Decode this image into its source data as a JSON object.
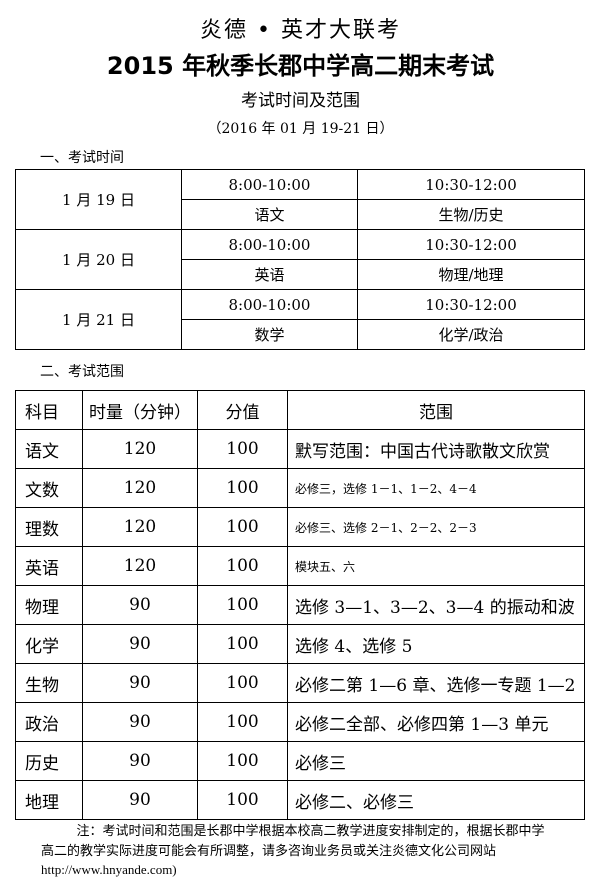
{
  "header": {
    "brand": "炎德 • 英才大联考",
    "title": "2015 年秋季长郡中学高二期末考试",
    "subtitle": "考试时间及范围",
    "date": "（2016 年 01 月 19-21 日）"
  },
  "schedule": {
    "heading": "一、考试时间",
    "days": [
      {
        "date": "1 月 19 日",
        "slot1_time": "8:00-10:00",
        "slot1_subject": "语文",
        "slot2_time": "10:30-12:00",
        "slot2_subject": "生物/历史"
      },
      {
        "date": "1 月 20 日",
        "slot1_time": "8:00-10:00",
        "slot1_subject": "英语",
        "slot2_time": "10:30-12:00",
        "slot2_subject": "物理/地理"
      },
      {
        "date": "1 月 21 日",
        "slot1_time": "8:00-10:00",
        "slot1_subject": "数学",
        "slot2_time": "10:30-12:00",
        "slot2_subject": "化学/政治"
      }
    ]
  },
  "scope": {
    "heading": "二、考试范围",
    "columns": [
      "科目",
      "时量（分钟）",
      "分值",
      "范围"
    ],
    "rows": [
      {
        "subject": "语文",
        "time": "120",
        "score": "100",
        "range": "默写范围：中国古代诗歌散文欣赏",
        "small": false
      },
      {
        "subject": "文数",
        "time": "120",
        "score": "100",
        "range": "必修三，选修 1－1、1－2、4－4",
        "small": true
      },
      {
        "subject": "理数",
        "time": "120",
        "score": "100",
        "range": "必修三、选修 2－1、2－2、2－3",
        "small": true
      },
      {
        "subject": "英语",
        "time": "120",
        "score": "100",
        "range": "模块五、六",
        "small": true
      },
      {
        "subject": "物理",
        "time": "90",
        "score": "100",
        "range": "选修 3—1、3—2、3—4 的振动和波",
        "small": false
      },
      {
        "subject": "化学",
        "time": "90",
        "score": "100",
        "range": "选修 4、选修 5",
        "small": false
      },
      {
        "subject": "生物",
        "time": "90",
        "score": "100",
        "range": "必修二第 1—6 章、选修一专题 1—2",
        "small": false
      },
      {
        "subject": "政治",
        "time": "90",
        "score": "100",
        "range": "必修二全部、必修四第 1—3 单元",
        "small": false
      },
      {
        "subject": "历史",
        "time": "90",
        "score": "100",
        "range": "必修三",
        "small": false
      },
      {
        "subject": "地理",
        "time": "90",
        "score": "100",
        "range": "必修二、必修三",
        "small": false
      }
    ]
  },
  "note": {
    "line1": "注：考试时间和范围是长郡中学根据本校高二教学进度安排制定的，根据长郡中学",
    "line2": "高二的教学实际进度可能会有所调整，请多咨询业务员或关注炎德文化公司网站",
    "line3": "http://www.hnyande.com)"
  }
}
